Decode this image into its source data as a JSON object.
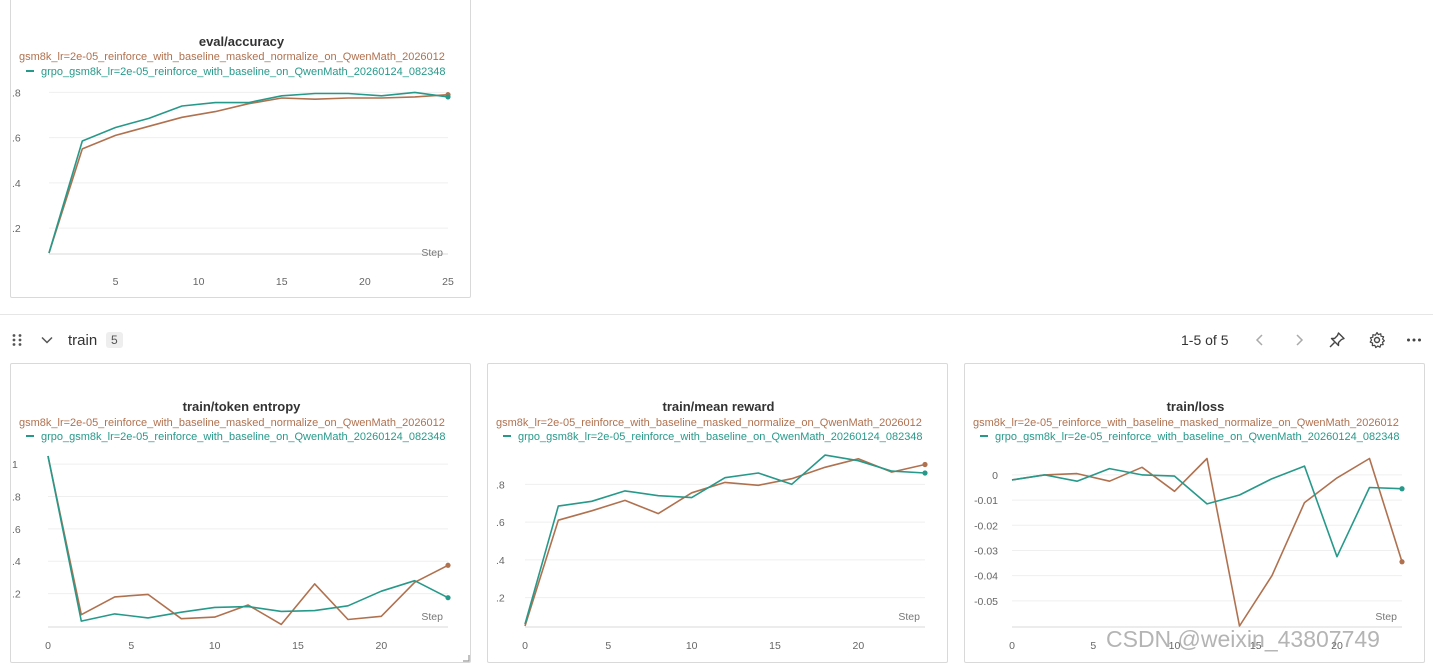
{
  "section": {
    "title": "train",
    "count": "5",
    "pagination": "1-5 of 5"
  },
  "series_names": {
    "a": "gsm8k_lr=2e-05_reinforce_with_baseline_masked_normalize_on_QwenMath_2026012",
    "b": "grpo_gsm8k_lr=2e-05_reinforce_with_baseline_on_QwenMath_20260124_082348"
  },
  "colors": {
    "a": "#b0714f",
    "b": "#27998a"
  },
  "step_label": "Step",
  "watermark": "CSDN @weixin_43807749",
  "chart_data": [
    {
      "type": "line",
      "title": "eval/accuracy",
      "xlabel": "Step",
      "xlim": [
        1,
        25
      ],
      "xticks": [
        5,
        10,
        15,
        20,
        25
      ],
      "ylim": [
        0.09,
        0.815
      ],
      "yticks": [
        0.2,
        0.4,
        0.6,
        0.8
      ],
      "ytick_labels": [
        ".2",
        ".4",
        ".6",
        ".8"
      ],
      "series": [
        {
          "name": "gsm8k_lr=2e-05_reinforce_with_baseline_masked_normalize_on_QwenMath_2026012",
          "x": [
            1,
            3,
            5,
            7,
            9,
            11,
            13,
            15,
            17,
            19,
            21,
            23,
            25
          ],
          "y": [
            0.09,
            0.55,
            0.61,
            0.65,
            0.69,
            0.715,
            0.75,
            0.775,
            0.77,
            0.775,
            0.775,
            0.78,
            0.79
          ]
        },
        {
          "name": "grpo_gsm8k_lr=2e-05_reinforce_with_baseline_on_QwenMath_20260124_082348",
          "x": [
            1,
            3,
            5,
            7,
            9,
            11,
            13,
            15,
            17,
            19,
            21,
            23,
            25
          ],
          "y": [
            0.09,
            0.585,
            0.645,
            0.685,
            0.74,
            0.755,
            0.755,
            0.785,
            0.795,
            0.795,
            0.785,
            0.8,
            0.78
          ]
        }
      ]
    },
    {
      "type": "line",
      "title": "train/token entropy",
      "xlabel": "Step",
      "xlim": [
        0,
        24
      ],
      "xticks": [
        0,
        5,
        10,
        15,
        20
      ],
      "ylim": [
        0,
        1.05
      ],
      "yticks": [
        0.2,
        0.4,
        0.6,
        0.8,
        1
      ],
      "ytick_labels": [
        ".2",
        ".4",
        ".6",
        ".8",
        "1"
      ],
      "series": [
        {
          "name": "gsm8k_lr=2e-05_reinforce_with_baseline_masked_normalize_on_QwenMath_2026012",
          "x": [
            0,
            2,
            4,
            6,
            8,
            10,
            12,
            14,
            16,
            18,
            20,
            22,
            24
          ],
          "y": [
            1.05,
            0.07,
            0.18,
            0.195,
            0.045,
            0.055,
            0.13,
            0.01,
            0.26,
            0.04,
            0.06,
            0.27,
            0.375
          ]
        },
        {
          "name": "grpo_gsm8k_lr=2e-05_reinforce_with_baseline_on_QwenMath_20260124_082348",
          "x": [
            0,
            2,
            4,
            6,
            8,
            10,
            12,
            14,
            16,
            18,
            20,
            22,
            24
          ],
          "y": [
            1.05,
            0.03,
            0.075,
            0.05,
            0.085,
            0.115,
            0.12,
            0.09,
            0.095,
            0.125,
            0.215,
            0.28,
            0.175
          ]
        }
      ]
    },
    {
      "type": "line",
      "title": "train/mean reward",
      "xlabel": "Step",
      "xlim": [
        0,
        24
      ],
      "xticks": [
        0,
        5,
        10,
        15,
        20
      ],
      "ylim": [
        0.05,
        0.95
      ],
      "yticks": [
        0.2,
        0.4,
        0.6,
        0.8
      ],
      "ytick_labels": [
        ".2",
        ".4",
        ".6",
        ".8"
      ],
      "series": [
        {
          "name": "gsm8k_lr=2e-05_reinforce_with_baseline_masked_normalize_on_QwenMath_2026012",
          "x": [
            0,
            2,
            4,
            6,
            8,
            10,
            12,
            14,
            16,
            18,
            20,
            22,
            24
          ],
          "y": [
            0.05,
            0.61,
            0.66,
            0.715,
            0.645,
            0.755,
            0.81,
            0.795,
            0.83,
            0.89,
            0.935,
            0.865,
            0.905
          ]
        },
        {
          "name": "grpo_gsm8k_lr=2e-05_reinforce_with_baseline_on_QwenMath_20260124_082348",
          "x": [
            0,
            2,
            4,
            6,
            8,
            10,
            12,
            14,
            16,
            18,
            20,
            22,
            24
          ],
          "y": [
            0.06,
            0.685,
            0.71,
            0.765,
            0.74,
            0.73,
            0.835,
            0.86,
            0.8,
            0.955,
            0.925,
            0.87,
            0.86
          ]
        }
      ]
    },
    {
      "type": "line",
      "title": "train/loss",
      "xlabel": "Step",
      "xlim": [
        0,
        24
      ],
      "xticks": [
        0,
        5,
        10,
        15,
        20
      ],
      "ylim": [
        -0.06,
        0.0075
      ],
      "yticks": [
        0,
        -0.01,
        -0.02,
        -0.03,
        -0.04,
        -0.05
      ],
      "ytick_labels": [
        "0",
        "-0.01",
        "-0.02",
        "-0.03",
        "-0.04",
        "-0.05"
      ],
      "series": [
        {
          "name": "gsm8k_lr=2e-05_reinforce_with_baseline_masked_normalize_on_QwenMath_2026012",
          "x": [
            0,
            2,
            4,
            6,
            8,
            10,
            12,
            14,
            16,
            18,
            20,
            22,
            24
          ],
          "y": [
            -0.002,
            0,
            0.0005,
            -0.0025,
            0.003,
            -0.0065,
            0.0065,
            -0.06,
            -0.04,
            -0.011,
            -0.0012,
            0.0065,
            -0.0345
          ]
        },
        {
          "name": "grpo_gsm8k_lr=2e-05_reinforce_with_baseline_on_QwenMath_20260124_082348",
          "x": [
            0,
            2,
            4,
            6,
            8,
            10,
            12,
            14,
            16,
            18,
            20,
            22,
            24
          ],
          "y": [
            -0.002,
            0,
            -0.0025,
            0.0025,
            0,
            -0.0005,
            -0.0115,
            -0.008,
            -0.0015,
            0.0035,
            -0.0325,
            -0.005,
            -0.0055
          ]
        }
      ]
    }
  ]
}
